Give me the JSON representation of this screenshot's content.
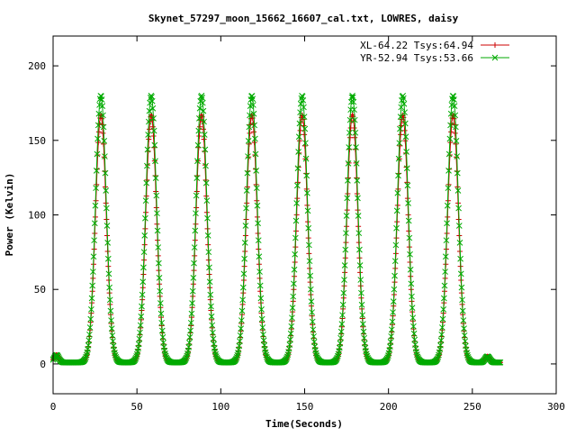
{
  "chart_data": {
    "type": "line",
    "title": "Skynet_57297_moon_15662_16607_cal.txt, LOWRES, daisy",
    "xlabel": "Time(Seconds)",
    "ylabel": "Power (Kelvin)",
    "xlim": [
      0,
      300
    ],
    "ylim": [
      -20,
      220
    ],
    "xticks": [
      0,
      50,
      100,
      150,
      200,
      250,
      300
    ],
    "yticks": [
      0,
      50,
      100,
      150,
      200
    ],
    "grid": false,
    "legend_position": "top-right",
    "x_end": 267,
    "peak_centers": [
      28.5,
      58.5,
      88.5,
      118.5,
      148.5,
      178.5,
      208.5,
      238.5
    ],
    "peak_half_width": 3.2,
    "baseline_bumps": [
      {
        "x": 2,
        "height": 5
      },
      {
        "x": 259,
        "height": 4
      }
    ],
    "series": [
      {
        "name": "XL-64.22 Tsys:64.94",
        "color": "#cc0000",
        "marker": "plus",
        "peak_value": 167,
        "baseline": 1
      },
      {
        "name": "YR-52.94 Tsys:53.66",
        "color": "#00aa00",
        "marker": "cross",
        "peak_value": 180,
        "baseline": 1
      }
    ]
  }
}
